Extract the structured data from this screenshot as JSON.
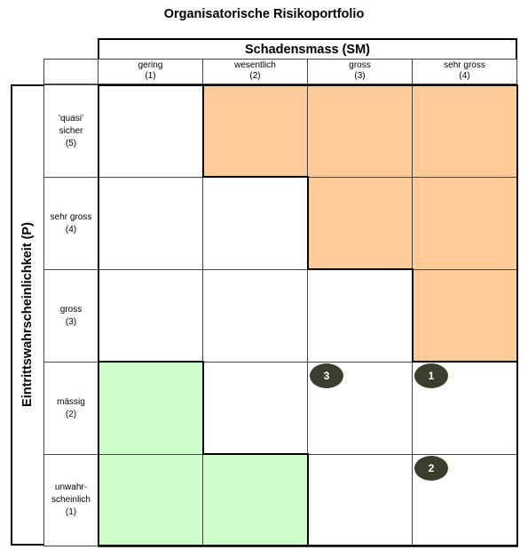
{
  "title": "Organisatorische Risikoportfolio",
  "x_axis": {
    "title": "Schadensmass (SM)",
    "columns": [
      {
        "label": "gering",
        "value": "(1)"
      },
      {
        "label": "wesentlich",
        "value": "(2)"
      },
      {
        "label": "gross",
        "value": "(3)"
      },
      {
        "label": "sehr gross",
        "value": "(4)"
      }
    ]
  },
  "y_axis": {
    "title": "Eintrittswahrscheinlichkeit (P)",
    "rows": [
      {
        "lines": [
          "'quasi'",
          "sicher"
        ],
        "value": "(5)"
      },
      {
        "lines": [
          "sehr gross"
        ],
        "value": "(4)"
      },
      {
        "lines": [
          "gross"
        ],
        "value": "(3)"
      },
      {
        "lines": [
          "mässig"
        ],
        "value": "(2)"
      },
      {
        "lines": [
          "unwahr-",
          "scheinlich"
        ],
        "value": "(1)"
      }
    ]
  },
  "zones": {
    "high_color": "#ffcc99",
    "low_color": "#ccffcc",
    "high_cells": [
      [
        5,
        2
      ],
      [
        5,
        3
      ],
      [
        5,
        4
      ],
      [
        4,
        3
      ],
      [
        4,
        4
      ],
      [
        3,
        4
      ]
    ],
    "low_cells": [
      [
        2,
        1
      ],
      [
        1,
        1
      ],
      [
        1,
        2
      ]
    ]
  },
  "risks": [
    {
      "id": "3",
      "sm": 3,
      "p": 2
    },
    {
      "id": "1",
      "sm": 4,
      "p": 2
    },
    {
      "id": "2",
      "sm": 4,
      "p": 1
    }
  ]
}
